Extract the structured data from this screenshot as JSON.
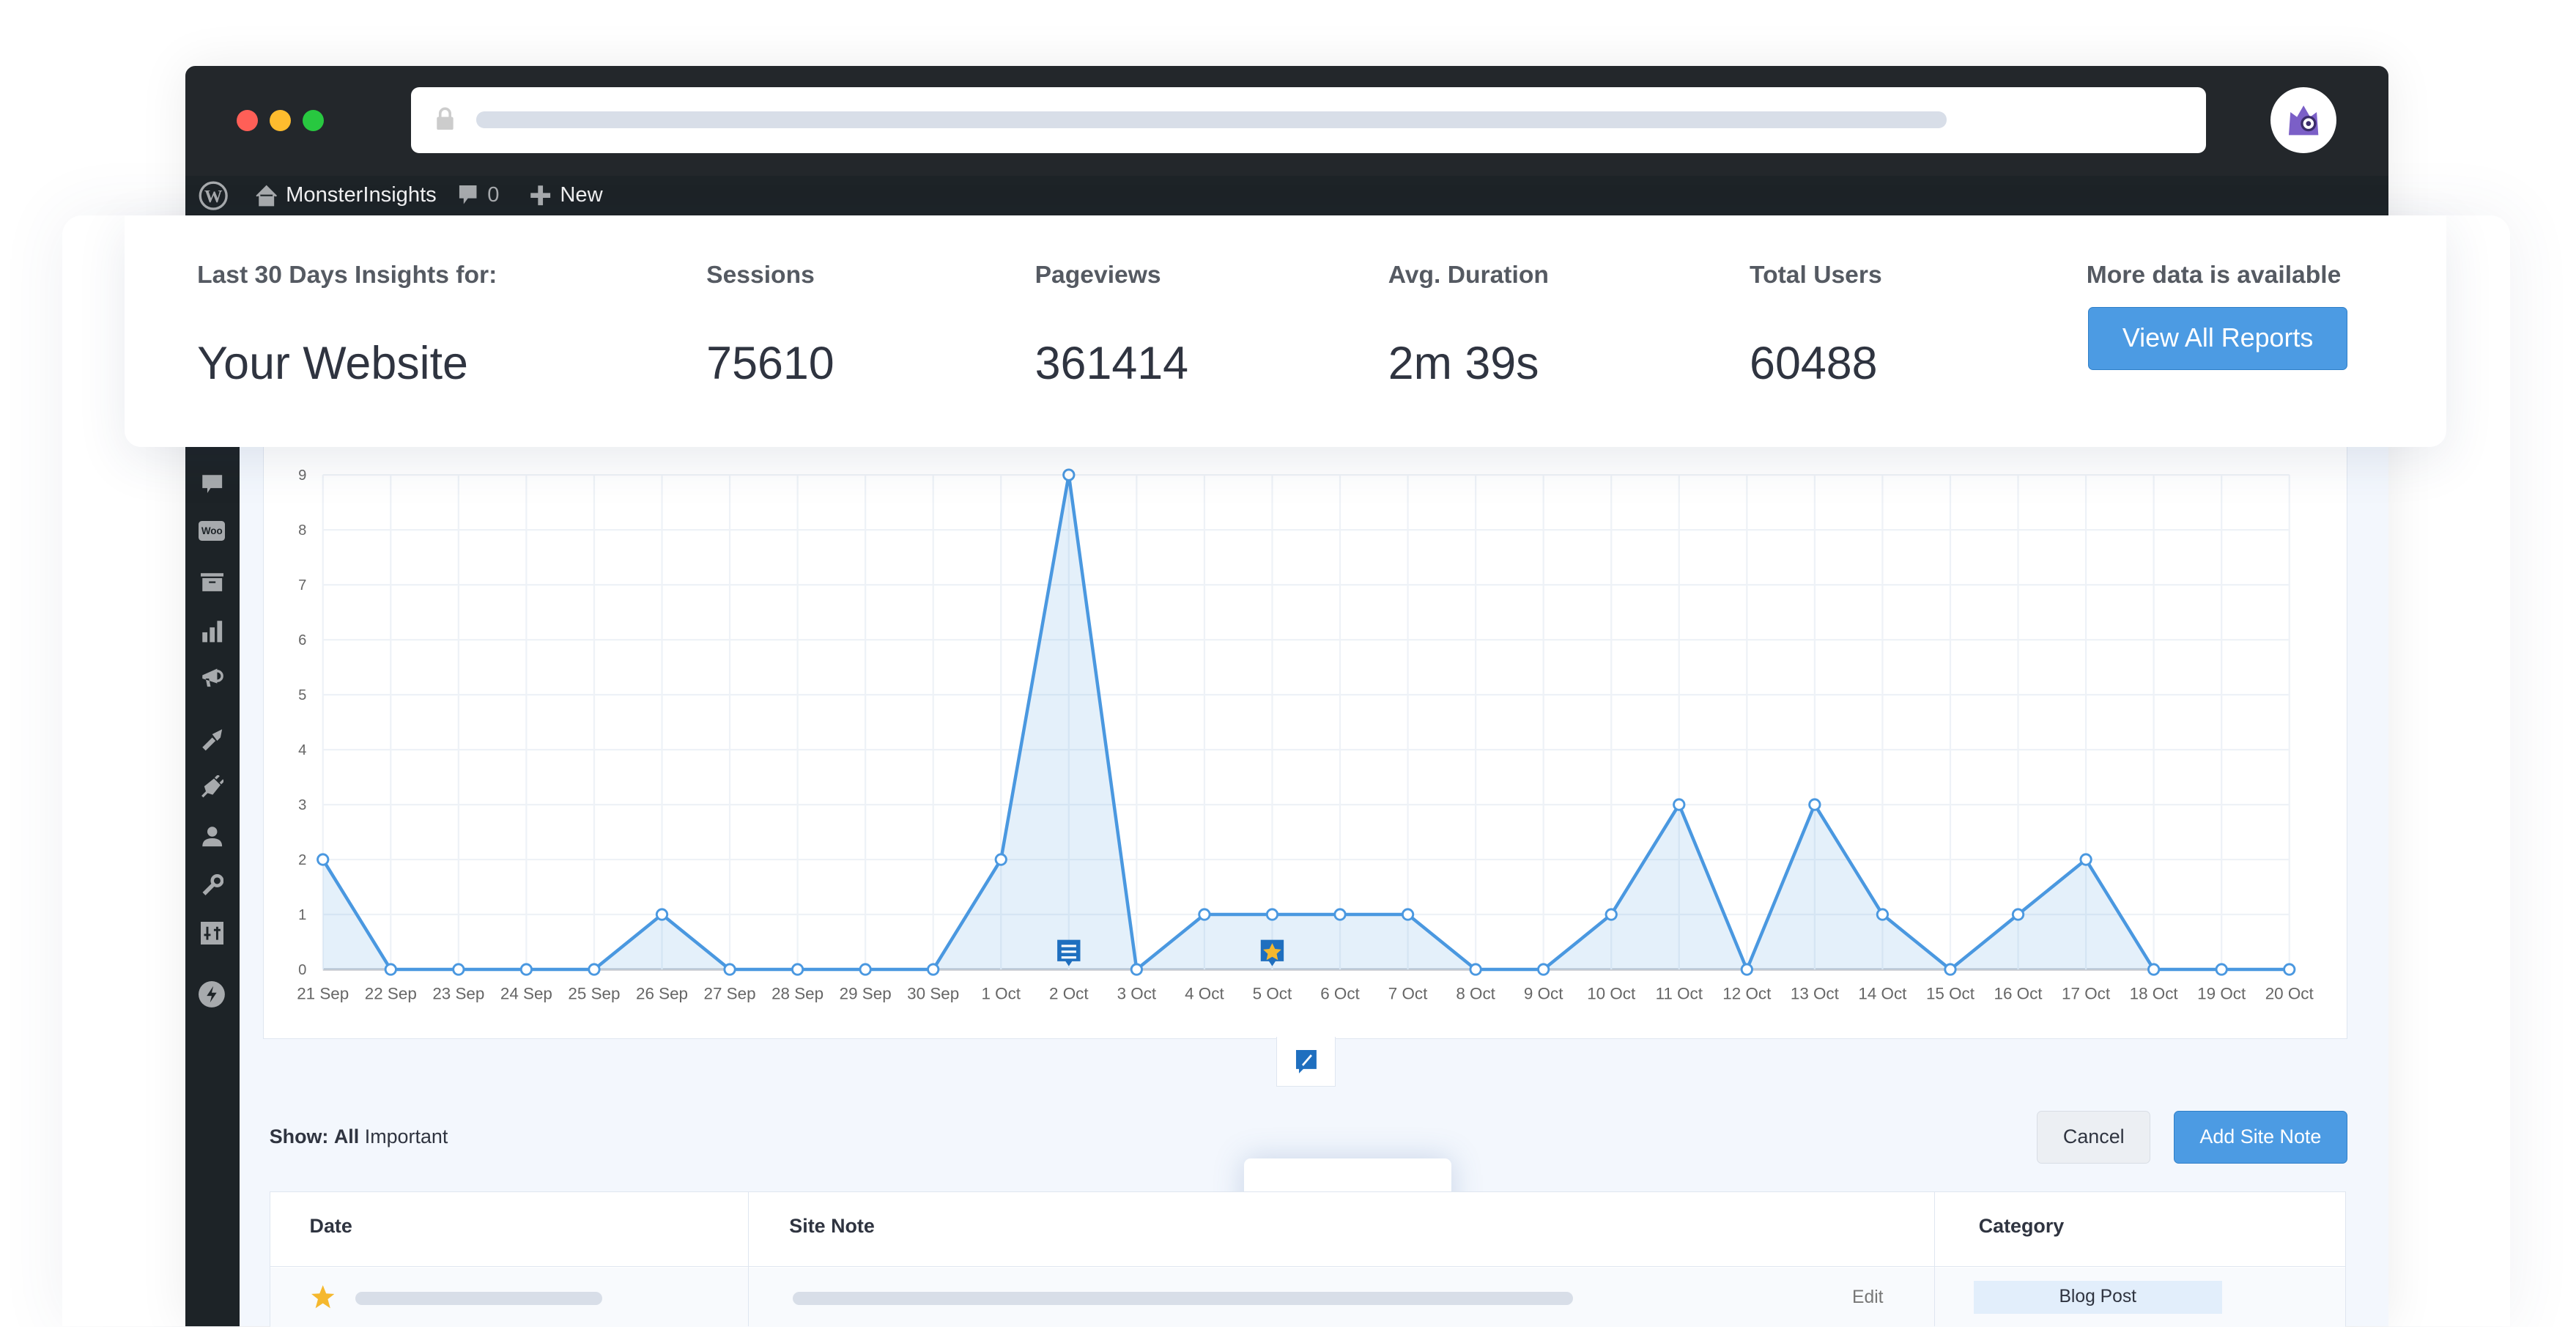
{
  "browser": {
    "traffic_lights": [
      "#ff5f57",
      "#febc2e",
      "#28c840"
    ]
  },
  "admin_bar": {
    "site_name": "MonsterInsights",
    "comments_count": "0",
    "new_label": "New"
  },
  "sidebar": {
    "icons": [
      "comments-icon",
      "woocommerce-icon",
      "archive-icon",
      "analytics-icon",
      "marketing-icon",
      "appearance-icon",
      "plugins-icon",
      "users-icon",
      "tools-icon",
      "settings-icon",
      "lightning-icon"
    ],
    "woo_label": "Woo"
  },
  "insights": {
    "title_label": "Last 30 Days Insights for:",
    "site": "Your Website",
    "metrics": [
      {
        "label": "Sessions",
        "value": "75610"
      },
      {
        "label": "Pageviews",
        "value": "361414"
      },
      {
        "label": "Avg. Duration",
        "value": "2m 39s"
      },
      {
        "label": "Total Users",
        "value": "60488"
      }
    ],
    "more_label": "More data is available",
    "button_label": "View All Reports"
  },
  "chart_data": {
    "type": "area",
    "categories": [
      "21 Sep",
      "22 Sep",
      "23 Sep",
      "24 Sep",
      "25 Sep",
      "26 Sep",
      "27 Sep",
      "28 Sep",
      "29 Sep",
      "30 Sep",
      "1 Oct",
      "2 Oct",
      "3 Oct",
      "4 Oct",
      "5 Oct",
      "6 Oct",
      "7 Oct",
      "8 Oct",
      "9 Oct",
      "10 Oct",
      "11 Oct",
      "12 Oct",
      "13 Oct",
      "14 Oct",
      "15 Oct",
      "16 Oct",
      "17 Oct",
      "18 Oct",
      "19 Oct",
      "20 Oct"
    ],
    "values": [
      2,
      0,
      0,
      0,
      0,
      1,
      0,
      0,
      0,
      0,
      2,
      9,
      0,
      1,
      1,
      1,
      1,
      0,
      0,
      1,
      3,
      0,
      3,
      1,
      0,
      1,
      2,
      0,
      0,
      0
    ],
    "yticks": [
      "0",
      "1",
      "2",
      "3",
      "4",
      "5",
      "6",
      "7",
      "8",
      "9"
    ],
    "ylim": [
      0,
      9
    ],
    "grid": true,
    "color": "#4a98e0",
    "annotations": [
      {
        "date": "2 Oct",
        "icon": "note-icon"
      },
      {
        "date": "5 Oct",
        "icon": "star-icon"
      }
    ]
  },
  "notes": {
    "show_label": "Show:",
    "filter_all": "All",
    "filter_important": "Important",
    "cancel_label": "Cancel",
    "add_label": "Add Site Note",
    "columns": [
      "Date",
      "Site Note",
      "Category"
    ],
    "rows": [
      {
        "important": true,
        "edit_label": "Edit",
        "category": "Blog Post"
      }
    ]
  }
}
